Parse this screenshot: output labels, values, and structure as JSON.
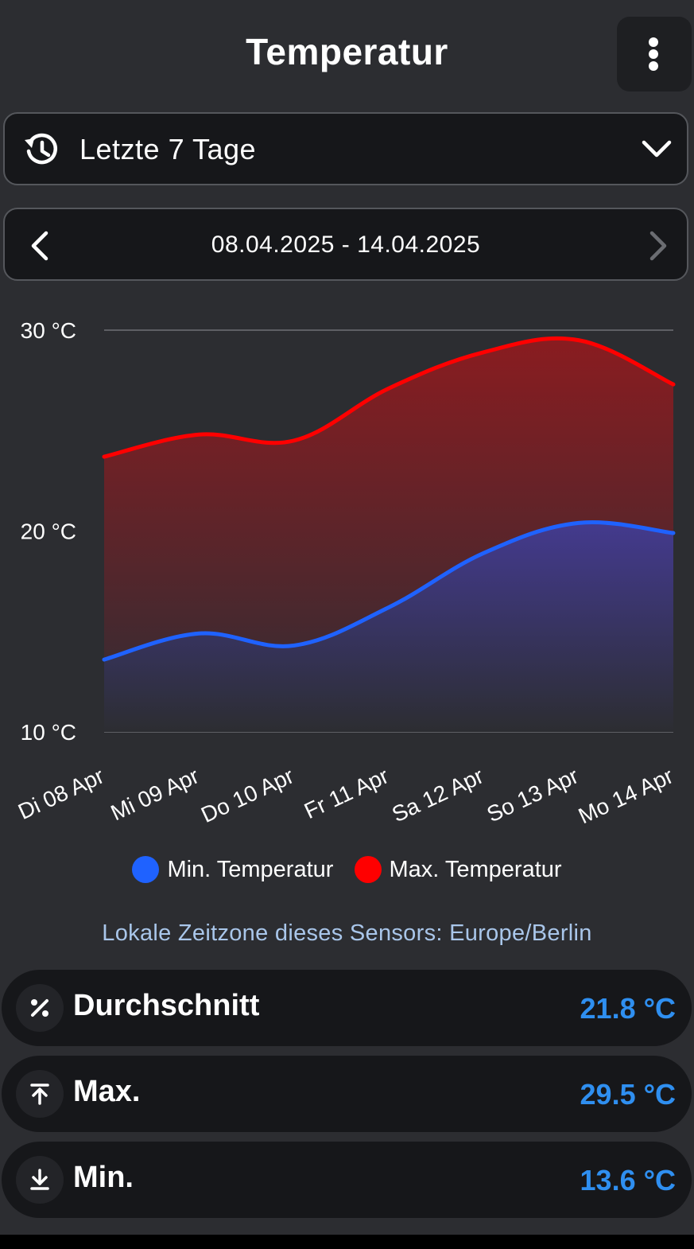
{
  "header": {
    "title": "Temperatur"
  },
  "range_select": {
    "label": "Letzte 7 Tage"
  },
  "date_nav": {
    "range": "08.04.2025 - 14.04.2025"
  },
  "colors": {
    "min": "#1f62ff",
    "max": "#ff0000",
    "accent": "#2f8ff0"
  },
  "chart_data": {
    "type": "area",
    "categories": [
      "Di 08 Apr",
      "Mi 09 Apr",
      "Do 10 Apr",
      "Fr 11 Apr",
      "Sa 12 Apr",
      "So 13 Apr",
      "Mo 14 Apr"
    ],
    "series": [
      {
        "name": "Min. Temperatur",
        "color": "#1f62ff",
        "values": [
          13.6,
          14.9,
          14.3,
          16.2,
          18.9,
          20.4,
          19.9
        ]
      },
      {
        "name": "Max. Temperatur",
        "color": "#ff0000",
        "values": [
          23.7,
          24.8,
          24.5,
          27.1,
          28.9,
          29.5,
          27.3
        ]
      }
    ],
    "y_ticks": [
      "10 °C",
      "20 °C",
      "30 °C"
    ],
    "ylim": [
      10,
      30
    ],
    "grid": true,
    "legend_position": "bottom"
  },
  "legend": {
    "min_label": "Min. Temperatur",
    "max_label": "Max. Temperatur"
  },
  "timezone_note": "Lokale Zeitzone dieses Sensors: Europe/Berlin",
  "stats": {
    "avg": {
      "label": "Durchschnitt",
      "value": "21.8 °C"
    },
    "max": {
      "label": "Max.",
      "value": "29.5 °C"
    },
    "min": {
      "label": "Min.",
      "value": "13.6 °C"
    }
  }
}
